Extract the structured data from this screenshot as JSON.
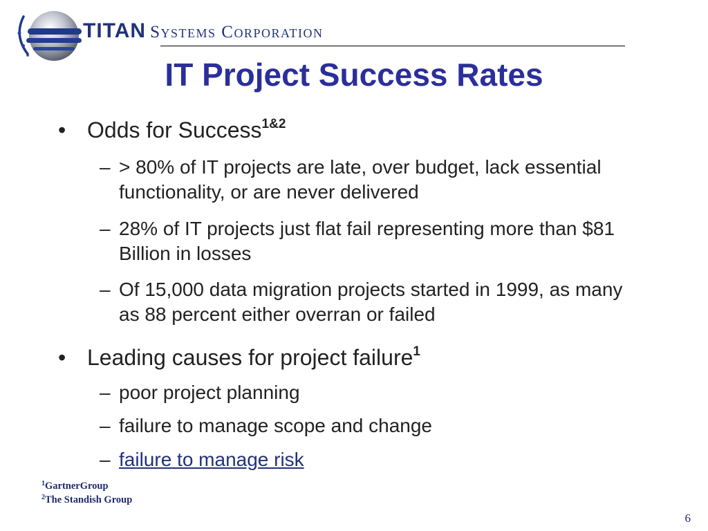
{
  "header": {
    "brand_bold": "TITAN",
    "brand_rest": "Systems Corporation"
  },
  "slide": {
    "title": "IT Project Success Rates",
    "bullets": [
      {
        "text": "Odds for Success",
        "sup": "1&2",
        "subs": [
          "> 80% of IT projects are late, over budget, lack essential functionality, or are never delivered",
          "28% of IT projects just flat fail representing more than $81 Billion in losses",
          "Of 15,000 data migration projects started in 1999, as many as 88 percent either overran or failed"
        ]
      },
      {
        "text": "Leading causes for project failure",
        "sup": "1",
        "subs": [
          "poor project planning",
          "failure to manage scope and change",
          "failure to manage risk"
        ]
      }
    ],
    "footnotes": [
      {
        "num": "1",
        "text": "GartnerGroup"
      },
      {
        "num": "2",
        "text": "The Standish Group"
      }
    ],
    "page_number": "6"
  },
  "colors": {
    "title": "#2b2f9b",
    "brand": "#22327a",
    "body_text": "#222222",
    "link": "#22327a"
  },
  "icons": {
    "logo": "titan-globe-logo-icon",
    "bullet": "bullet-dot",
    "dash": "en-dash"
  }
}
